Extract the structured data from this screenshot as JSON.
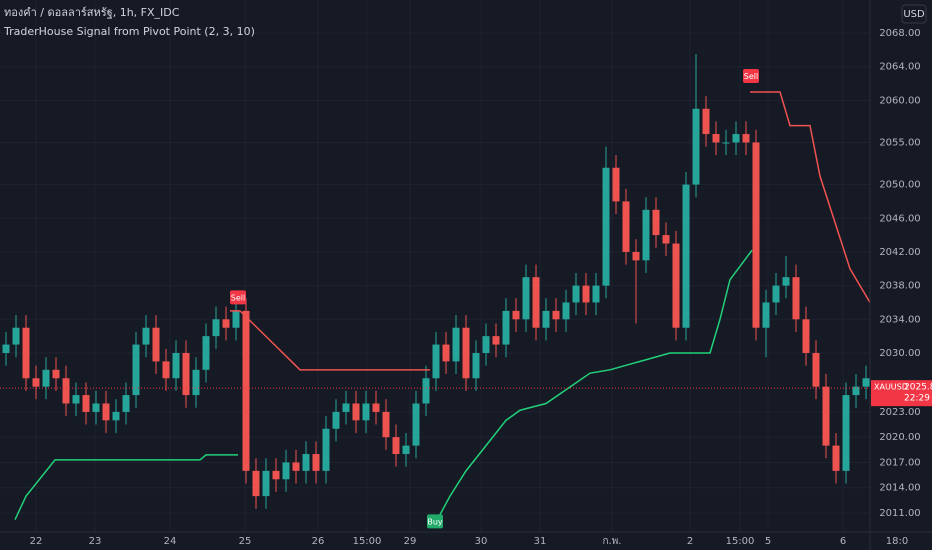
{
  "header": {
    "symbol": "ทองคำ / ดอลลาร์สหรัฐ, 1h, FX_IDC",
    "indicator": "TraderHouse Signal from Pivot Point (2, 3, 10)",
    "currency": "USD"
  },
  "chart_data": {
    "type": "candlestick",
    "up_color": "#26a69a",
    "down_color": "#ef5350",
    "grid": true,
    "xlim": [
      -0.6,
      86.4
    ],
    "ylim": [
      2008.74,
      2071.92
    ],
    "xticks": [
      {
        "value": 3,
        "label": "22"
      },
      {
        "value": 8.9,
        "label": "23"
      },
      {
        "value": 16.4,
        "label": "24"
      },
      {
        "value": 23.9,
        "label": "25"
      },
      {
        "value": 31.2,
        "label": "26"
      },
      {
        "value": 36.1,
        "label": "15:00"
      },
      {
        "value": 40.4,
        "label": "29"
      },
      {
        "value": 47.5,
        "label": "30"
      },
      {
        "value": 53.4,
        "label": "31"
      },
      {
        "value": 60.6,
        "label": "ก.พ."
      },
      {
        "value": 68.4,
        "label": "2"
      },
      {
        "value": 73.4,
        "label": "15:00"
      },
      {
        "value": 76.2,
        "label": "5"
      },
      {
        "value": 83.7,
        "label": "6"
      },
      {
        "value": 89.1,
        "label": "18:0"
      }
    ],
    "yticks": [
      {
        "value": 2068,
        "label": "2068.00"
      },
      {
        "value": 2064,
        "label": "2064.00"
      },
      {
        "value": 2060,
        "label": "2060.00"
      },
      {
        "value": 2055,
        "label": "2055.00"
      },
      {
        "value": 2050,
        "label": "2050.00"
      },
      {
        "value": 2046,
        "label": "2046.00"
      },
      {
        "value": 2042,
        "label": "2042.00"
      },
      {
        "value": 2038,
        "label": "2038.00"
      },
      {
        "value": 2034,
        "label": "2034.00"
      },
      {
        "value": 2030,
        "label": "2030.00"
      },
      {
        "value": 2023,
        "label": "2023.00"
      },
      {
        "value": 2020,
        "label": "2020.00"
      },
      {
        "value": 2017,
        "label": "2017.00"
      },
      {
        "value": 2014,
        "label": "2014.00"
      },
      {
        "value": 2011,
        "label": "2011.00"
      }
    ],
    "candles": {
      "open": [
        2030,
        2031,
        2033,
        2027,
        2026,
        2028,
        2027,
        2024,
        2025,
        2023,
        2024,
        2022,
        2023,
        2025,
        2031,
        2033,
        2029,
        2027,
        2030,
        2025,
        2028,
        2032,
        2034,
        2033,
        2035,
        2016,
        2013,
        2016,
        2015,
        2017,
        2016,
        2018,
        2016,
        2021,
        2023,
        2024,
        2022,
        2024,
        2023,
        2020,
        2018,
        2019,
        2024,
        2027,
        2031,
        2029,
        2033,
        2027,
        2030,
        2032,
        2031,
        2035,
        2034,
        2039,
        2033,
        2035,
        2034,
        2036,
        2038,
        2036,
        2038,
        2052,
        2048,
        2042,
        2041,
        2047,
        2044,
        2043,
        2033,
        2050,
        2059,
        2056,
        2055,
        2055,
        2056,
        2055,
        2033,
        2036,
        2038,
        2039,
        2034,
        2030,
        2026,
        2019,
        2016,
        2025,
        2026
      ],
      "high": [
        2032.5,
        2034.5,
        2034.5,
        2028.5,
        2029.5,
        2029.5,
        2028.5,
        2026.5,
        2026.5,
        2025.5,
        2025.5,
        2024.5,
        2026.5,
        2032.5,
        2034.5,
        2034.5,
        2030.5,
        2031.5,
        2031.5,
        2029.5,
        2033.5,
        2035.5,
        2035.5,
        2036.5,
        2036.5,
        2017.5,
        2017.5,
        2017.5,
        2018.5,
        2018.5,
        2019.5,
        2019.5,
        2022.5,
        2024.5,
        2025.5,
        2025.5,
        2025.5,
        2025.5,
        2024.5,
        2021.5,
        2020.5,
        2025.5,
        2028.5,
        2032.5,
        2032.5,
        2034.5,
        2034.5,
        2031.5,
        2033.5,
        2033.5,
        2036.5,
        2036.5,
        2040.5,
        2040.5,
        2036.5,
        2036.5,
        2037.5,
        2039.5,
        2039.5,
        2039.5,
        2054.5,
        2053.5,
        2049.5,
        2043.5,
        2048.5,
        2048.5,
        2045.5,
        2044.5,
        2051.5,
        2065.5,
        2060.5,
        2057.5,
        2056.5,
        2057.5,
        2057.5,
        2056.5,
        2037.5,
        2039.5,
        2041.5,
        2040.5,
        2035.5,
        2031.5,
        2027.5,
        2020.5,
        2026.5,
        2027.5,
        2028.5
      ],
      "low": [
        2028.5,
        2029.5,
        2025.5,
        2024.5,
        2024.5,
        2025.5,
        2022.5,
        2022.5,
        2021.5,
        2021.5,
        2020.5,
        2020.5,
        2021.5,
        2023.5,
        2029.5,
        2027.5,
        2025.5,
        2025.5,
        2023.5,
        2023.5,
        2026.5,
        2030.5,
        2031.5,
        2031.5,
        2014.5,
        2011.5,
        2011.5,
        2013.5,
        2013.5,
        2014.5,
        2014.5,
        2014.5,
        2014.5,
        2019.5,
        2021.5,
        2020.5,
        2020.5,
        2021.5,
        2018.5,
        2016.5,
        2016.5,
        2017.5,
        2022.5,
        2025.5,
        2027.5,
        2027.5,
        2025.5,
        2025.5,
        2028.5,
        2029.5,
        2029.5,
        2032.5,
        2032.5,
        2031.5,
        2031.5,
        2032.5,
        2032.5,
        2034.5,
        2034.5,
        2034.5,
        2036.5,
        2046.5,
        2040.5,
        2033.5,
        2039.5,
        2042.5,
        2041.5,
        2031.5,
        2031.5,
        2048.5,
        2054.5,
        2053.5,
        2053.5,
        2053.5,
        2053.5,
        2031.5,
        2029.5,
        2034.5,
        2036.5,
        2032.5,
        2028.5,
        2024.5,
        2017.5,
        2014.5,
        2014.5,
        2023.5,
        2024.5
      ],
      "close": [
        2031,
        2033,
        2027,
        2026,
        2028,
        2027,
        2024,
        2025,
        2023,
        2024,
        2022,
        2023,
        2025,
        2031,
        2033,
        2029,
        2027,
        2030,
        2025,
        2028,
        2032,
        2034,
        2033,
        2035,
        2016,
        2013,
        2016,
        2015,
        2017,
        2016,
        2018,
        2016,
        2021,
        2023,
        2024,
        2022,
        2024,
        2023,
        2020,
        2018,
        2019,
        2024,
        2027,
        2031,
        2029,
        2033,
        2027,
        2030,
        2032,
        2031,
        2035,
        2034,
        2039,
        2033,
        2035,
        2034,
        2036,
        2038,
        2036,
        2038,
        2052,
        2048,
        2042,
        2041,
        2047,
        2044,
        2043,
        2033,
        2050,
        2059,
        2056,
        2055,
        2055,
        2056,
        2055,
        2033,
        2036,
        2038,
        2039,
        2034,
        2030,
        2026,
        2019,
        2016,
        2025,
        2026,
        2027
      ]
    },
    "lines": [
      {
        "color": "#f05350",
        "x": [
          22.4,
          23.4,
          29.4,
          42.4
        ],
        "y": [
          2035,
          2035,
          2028,
          2028
        ]
      },
      {
        "color": "#f05350",
        "x": [
          74.4,
          77.4,
          78.4,
          80.4,
          81.4,
          84.4,
          86.4
        ],
        "y": [
          2061,
          2061,
          2057,
          2057,
          2051,
          2040,
          2036
        ]
      },
      {
        "color": "#22d17a",
        "x": [
          0.9,
          2,
          4.9,
          19.4,
          20,
          23.2
        ],
        "y": [
          2010.2,
          2013,
          2017.3,
          2017.3,
          2017.9,
          2017.9
        ]
      },
      {
        "color": "#22d17a",
        "x": [
          43.4,
          44.4,
          46,
          48,
          50,
          51.4,
          54,
          58.4,
          60.4,
          66.4,
          70.4,
          71.4,
          72.4,
          74.6
        ],
        "y": [
          2010.8,
          2013,
          2016,
          2019,
          2022,
          2023.2,
          2024,
          2027.6,
          2028,
          2030,
          2030,
          2034,
          2038.7,
          2042.2
        ]
      }
    ],
    "signals": [
      {
        "text": "Sell",
        "color": "#f23645",
        "x": 23.2,
        "y": 2036.6
      },
      {
        "text": "Sell",
        "color": "#f23645",
        "x": 74.5,
        "y": 2062.9
      },
      {
        "text": "Buy",
        "color": "#22ab6a",
        "x": 42.9,
        "y": 2010
      }
    ],
    "last_price": {
      "symbol": "XAUUSD",
      "value": 2025.82,
      "label": "2025.82",
      "countdown": "22:29",
      "color": "#f23645"
    }
  }
}
